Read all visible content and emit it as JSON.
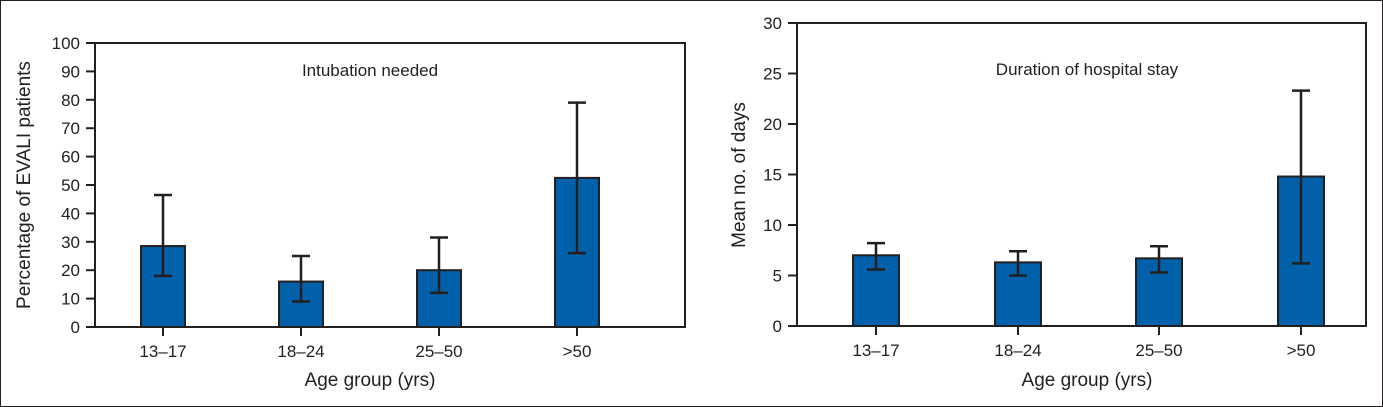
{
  "chart_data": [
    {
      "type": "bar",
      "title": "Intubation needed",
      "xlabel": "Age group (yrs)",
      "ylabel": "Percentage of EVALI patients",
      "ylim": [
        0,
        100
      ],
      "yticks": [
        0,
        10,
        20,
        30,
        40,
        50,
        60,
        70,
        80,
        90,
        100
      ],
      "categories": [
        "13–17",
        "18–24",
        "25–50",
        ">50"
      ],
      "values": [
        28.5,
        16,
        20,
        52.5
      ],
      "error_low": [
        18,
        9,
        12,
        26
      ],
      "error_high": [
        46.5,
        25,
        31.5,
        79
      ],
      "bar_color": "#0060a9"
    },
    {
      "type": "bar",
      "title": "Duration of hospital stay",
      "xlabel": "Age group (yrs)",
      "ylabel": "Mean no. of days",
      "ylim": [
        0,
        30
      ],
      "yticks": [
        0,
        5,
        10,
        15,
        20,
        25,
        30
      ],
      "categories": [
        "13–17",
        "18–24",
        "25–50",
        ">50"
      ],
      "values": [
        7,
        6.3,
        6.7,
        14.8
      ],
      "error_low": [
        5.6,
        5,
        5.3,
        6.2
      ],
      "error_high": [
        8.2,
        7.4,
        7.9,
        23.3
      ],
      "bar_color": "#0060a9"
    }
  ]
}
